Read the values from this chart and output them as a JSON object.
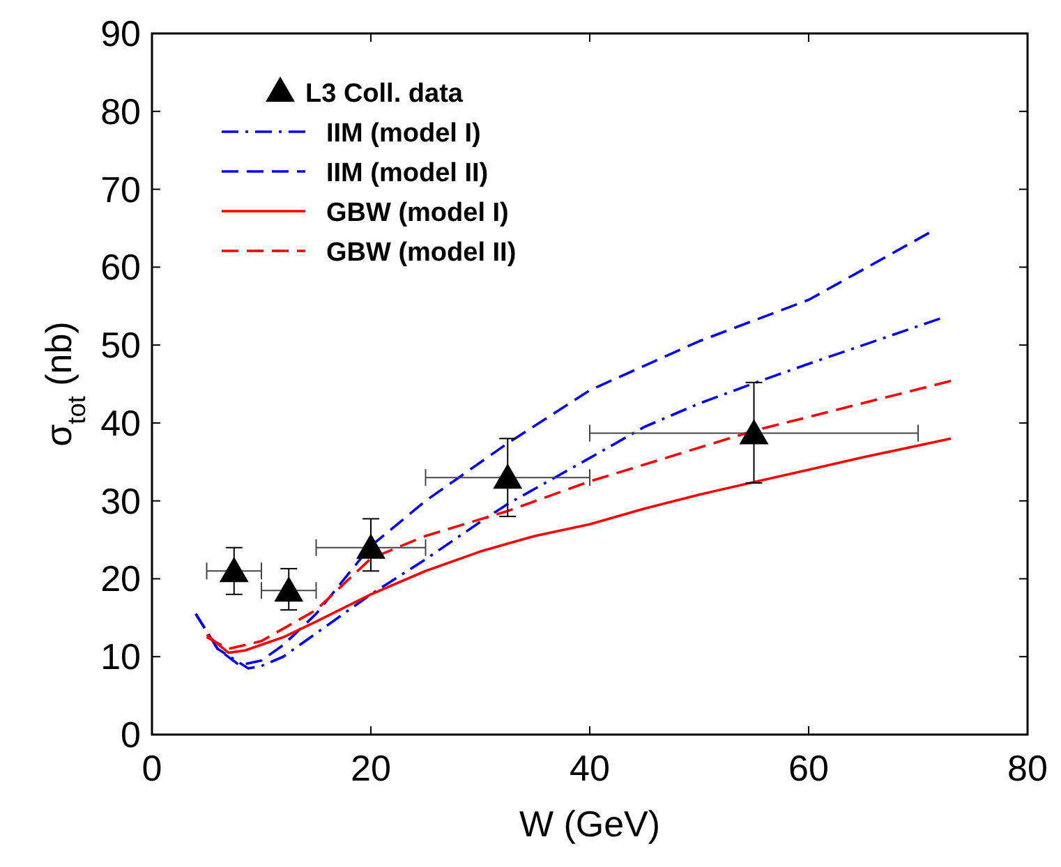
{
  "chart_data": {
    "type": "line",
    "xlabel": "W (GeV)",
    "ylabel": "σ$_{tot}$ (nb)",
    "xlim": [
      0,
      80
    ],
    "ylim": [
      0,
      90
    ],
    "xticks": [
      0,
      20,
      40,
      60,
      80
    ],
    "yticks": [
      0,
      10,
      20,
      30,
      40,
      50,
      60,
      70,
      80,
      90
    ],
    "legend": "top left",
    "grid": false,
    "series": [
      {
        "name": "L3 Coll. data",
        "type": "scatter",
        "marker": "triangle",
        "color": "#000000",
        "x": [
          7.5,
          12.5,
          20,
          32.5,
          55
        ],
        "values": [
          21,
          18.5,
          24,
          33,
          38.7
        ],
        "errors": [
          [
            18,
            24
          ],
          [
            16,
            21.3
          ],
          [
            21,
            27.7
          ],
          [
            28,
            38
          ],
          [
            32.3,
            45.2
          ]
        ],
        "xerrors": [
          [
            5,
            10
          ],
          [
            10,
            15
          ],
          [
            15,
            25
          ],
          [
            25,
            40
          ],
          [
            40,
            70
          ]
        ]
      },
      {
        "name": "IIM (model I)",
        "line_style": "dashdot",
        "color": "#0000ff",
        "x": [
          4,
          6,
          8.8,
          10,
          12,
          15,
          20,
          25,
          30,
          32.5,
          40,
          45,
          50,
          55,
          60,
          65,
          72
        ],
        "values": [
          15.5,
          11,
          8.5,
          8.8,
          10,
          13,
          18,
          22.5,
          27.3,
          29.6,
          35.5,
          39.5,
          42.5,
          45.1,
          47.6,
          50,
          53.4
        ]
      },
      {
        "name": "IIM (model II)",
        "line_style": "dashed",
        "color": "#0000ff",
        "x": [
          4,
          6,
          8,
          10,
          12,
          15,
          20,
          25,
          32.5,
          40,
          50,
          60,
          71
        ],
        "values": [
          15.5,
          11,
          8.9,
          9.5,
          11.5,
          15.5,
          24.2,
          30,
          37.4,
          44.2,
          50.5,
          55.8,
          64.4
        ]
      },
      {
        "name": "GBW (model I)",
        "line_style": "solid",
        "color": "#ff0000",
        "x": [
          5,
          7,
          8.5,
          12,
          15,
          20,
          25,
          30,
          35,
          40,
          45,
          50,
          55,
          60,
          65,
          73
        ],
        "values": [
          12.8,
          10.5,
          10.8,
          12.5,
          14.5,
          18,
          21,
          23.5,
          25.5,
          27,
          29,
          30.8,
          32.4,
          34,
          35.6,
          38
        ]
      },
      {
        "name": "GBW (model II)",
        "line_style": "dashed",
        "color": "#ff0000",
        "x": [
          5,
          7,
          10,
          15,
          20,
          25,
          32.5,
          40,
          55,
          73
        ],
        "values": [
          12.5,
          11,
          12,
          16,
          22.6,
          25.5,
          28.7,
          32.5,
          39,
          45.4
        ]
      }
    ]
  }
}
